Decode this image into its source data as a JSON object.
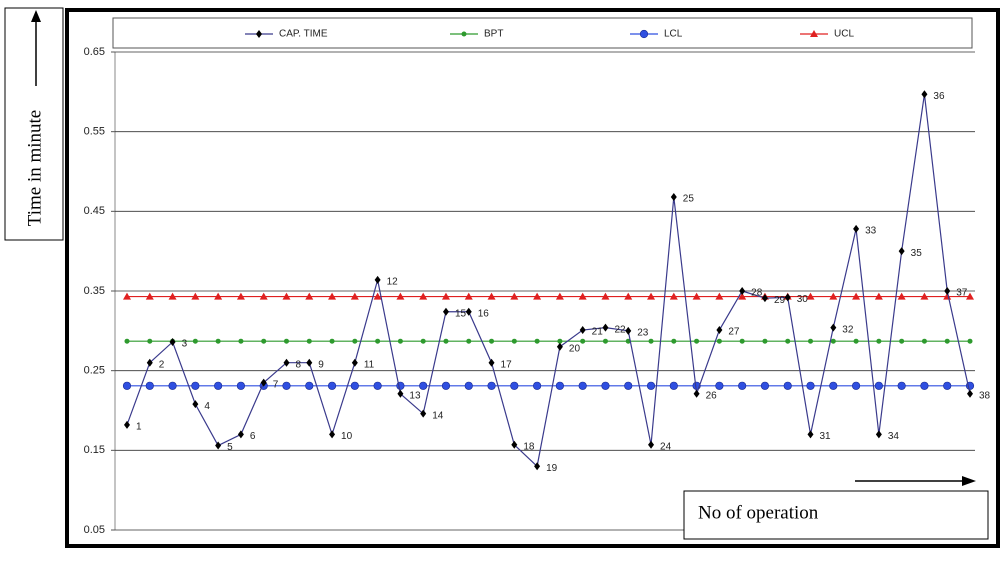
{
  "chart_data": {
    "type": "line",
    "y_label": "Time in minute",
    "x_label": "No of operation",
    "categories": [
      1,
      2,
      3,
      4,
      5,
      6,
      7,
      8,
      9,
      10,
      11,
      12,
      13,
      14,
      15,
      16,
      17,
      18,
      19,
      20,
      21,
      22,
      23,
      24,
      25,
      26,
      27,
      28,
      29,
      30,
      31,
      32,
      33,
      34,
      35,
      36,
      37,
      38
    ],
    "series": [
      {
        "name": "CAP. TIME",
        "color": "#000000",
        "line_color": "#3a3a8c",
        "marker": "diamond",
        "values": [
          0.182,
          0.26,
          0.286,
          0.208,
          0.156,
          0.17,
          0.235,
          0.26,
          0.26,
          0.17,
          0.26,
          0.364,
          0.221,
          0.196,
          0.324,
          0.324,
          0.26,
          0.157,
          0.13,
          0.28,
          0.301,
          0.304,
          0.3,
          0.157,
          0.468,
          0.221,
          0.301,
          0.35,
          0.341,
          0.342,
          0.17,
          0.304,
          0.428,
          0.17,
          0.4,
          0.597,
          0.35,
          0.221
        ]
      },
      {
        "name": "BPT",
        "color": "#2e9a2e",
        "line_color": "#2e9a2e",
        "marker": "circle-small",
        "values": [
          0.287,
          0.287,
          0.287,
          0.287,
          0.287,
          0.287,
          0.287,
          0.287,
          0.287,
          0.287,
          0.287,
          0.287,
          0.287,
          0.287,
          0.287,
          0.287,
          0.287,
          0.287,
          0.287,
          0.287,
          0.287,
          0.287,
          0.287,
          0.287,
          0.287,
          0.287,
          0.287,
          0.287,
          0.287,
          0.287,
          0.287,
          0.287,
          0.287,
          0.287,
          0.287,
          0.287,
          0.287,
          0.287
        ]
      },
      {
        "name": "LCL",
        "color": "#2f4fe0",
        "line_color": "#2f4fe0",
        "marker": "circle",
        "values": [
          0.231,
          0.231,
          0.231,
          0.231,
          0.231,
          0.231,
          0.231,
          0.231,
          0.231,
          0.231,
          0.231,
          0.231,
          0.231,
          0.231,
          0.231,
          0.231,
          0.231,
          0.231,
          0.231,
          0.231,
          0.231,
          0.231,
          0.231,
          0.231,
          0.231,
          0.231,
          0.231,
          0.231,
          0.231,
          0.231,
          0.231,
          0.231,
          0.231,
          0.231,
          0.231,
          0.231,
          0.231,
          0.231
        ]
      },
      {
        "name": "UCL",
        "color": "#e02020",
        "line_color": "#e02020",
        "marker": "triangle",
        "values": [
          0.343,
          0.343,
          0.343,
          0.343,
          0.343,
          0.343,
          0.343,
          0.343,
          0.343,
          0.343,
          0.343,
          0.343,
          0.343,
          0.343,
          0.343,
          0.343,
          0.343,
          0.343,
          0.343,
          0.343,
          0.343,
          0.343,
          0.343,
          0.343,
          0.343,
          0.343,
          0.343,
          0.343,
          0.343,
          0.343,
          0.343,
          0.343,
          0.343,
          0.343,
          0.343,
          0.343,
          0.343,
          0.343
        ]
      }
    ],
    "ylim": [
      0.05,
      0.65
    ],
    "yticks": [
      0.05,
      0.15,
      0.25,
      0.35,
      0.45,
      0.55,
      0.65
    ],
    "grid": true
  }
}
